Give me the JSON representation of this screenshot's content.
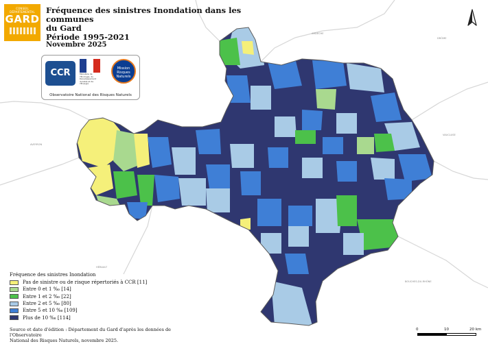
{
  "header": {
    "logo_small": "CONSEIL DÉPARTEMENTAL",
    "logo_big": "GARD",
    "title_line1": "Fréquence des sinistres Inondation dans les communes",
    "title_line2": "du Gard",
    "title_line3": "Période 1995-2021",
    "date": "Novembre 2025"
  },
  "partners": {
    "ccr": "CCR",
    "ministry": "Ministère de l'Écologie, du Développement durable et de l'Énergie",
    "mrn": "Mission Risques Naturels",
    "onrn": "Observatoire National des Risques Naturels"
  },
  "map": {
    "neighbours": [
      "ARDECHE",
      "DRÔME",
      "VAUCLUSE",
      "AVEYRON",
      "HÉRAULT",
      "BOUCHES-DU-RHÔNE"
    ],
    "north_icon": "north-arrow-icon"
  },
  "legend": {
    "title": "Fréquence des sinistres Inondation",
    "items": [
      {
        "label": "Pas de sinistre ou de risque répertoriés à CCR [11]",
        "color": "#f5f07a"
      },
      {
        "label": "Entre 0 et 1 ‰ [14]",
        "color": "#a9d98f"
      },
      {
        "label": "Entre 1 et 2 ‰ [22]",
        "color": "#4cc14a"
      },
      {
        "label": "Entre 2 et 5 ‰ [80]",
        "color": "#a9cbe6"
      },
      {
        "label": "Entre 5 et 10 ‰ [109]",
        "color": "#3f7fd6"
      },
      {
        "label": "Plus de 10 ‰ [114]",
        "color": "#2f3770"
      }
    ]
  },
  "source": {
    "line1": "Source et date d'édition : Département du Gard d'après les données de l'Observatoire",
    "line2": "National des Risques Naturels, novembre 2025."
  },
  "scale": {
    "t0": "0",
    "t1": "10",
    "t2": "20 km"
  }
}
